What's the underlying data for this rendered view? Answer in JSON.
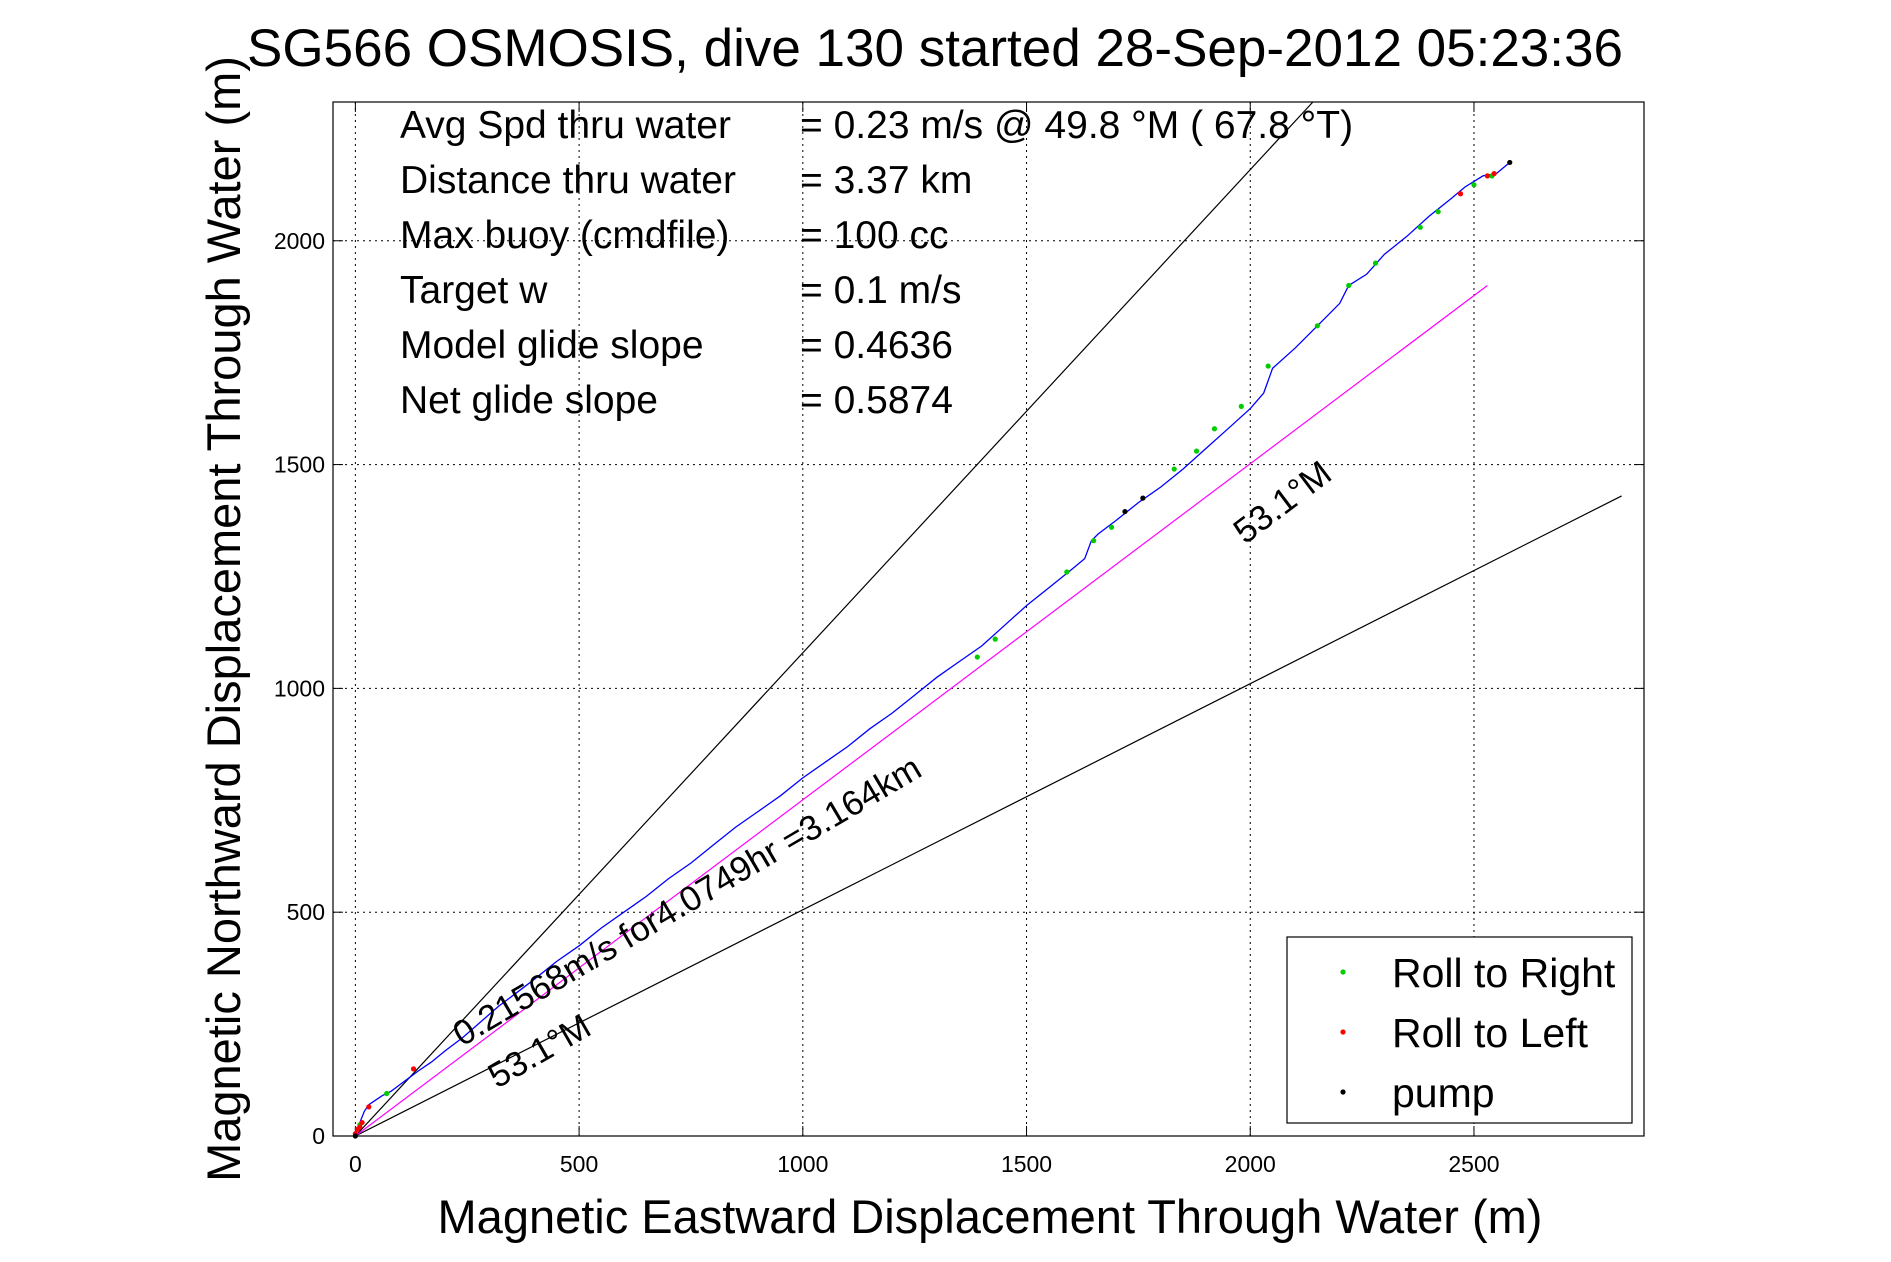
{
  "chart_data": {
    "type": "line",
    "title": "SG566 OSMOSIS, dive 130 started 28-Sep-2012 05:23:36",
    "xlabel": "Magnetic Eastward Displacement Through Water (m)",
    "ylabel": "Magnetic Northward Displacement Through Water (m)",
    "xlim": [
      -50,
      2880
    ],
    "ylim": [
      0,
      2310
    ],
    "xticks": [
      0,
      500,
      1000,
      1500,
      2000,
      2500
    ],
    "yticks": [
      0,
      500,
      1000,
      1500,
      2000
    ],
    "grid": true,
    "stats": [
      {
        "label": "Avg Spd thru water",
        "value": "=  0.23 m/s @  49.8 °M ( 67.8 °T)"
      },
      {
        "label": "Distance thru water",
        "value": "=  3.37 km"
      },
      {
        "label": "Max buoy (cmdfile)",
        "value": "= 100 cc"
      },
      {
        "label": "Target w",
        "value": "= 0.1 m/s"
      },
      {
        "label": "Model glide slope",
        "value": "= 0.4636"
      },
      {
        "label": "Net glide slope",
        "value": "= 0.5874"
      }
    ],
    "annotations": {
      "speed_line_label": "0.21568m/s for4.0749hr =3.164km",
      "heading_label_lower": "53.1°M",
      "heading_label_upper": "53.1°M"
    },
    "reference_lines": [
      {
        "name": "upper",
        "color": "#000000",
        "x": [
          0,
          2140
        ],
        "y": [
          0,
          2310
        ]
      },
      {
        "name": "lower",
        "color": "#000000",
        "x": [
          0,
          2830
        ],
        "y": [
          0,
          1430
        ]
      },
      {
        "name": "heading",
        "color": "#ff00ff",
        "x": [
          0,
          2530
        ],
        "y": [
          0,
          1900
        ]
      }
    ],
    "track": {
      "color": "#0000ff",
      "x": [
        0,
        5,
        12,
        20,
        30,
        45,
        60,
        80,
        100,
        120,
        140,
        170,
        200,
        240,
        280,
        320,
        360,
        400,
        450,
        500,
        550,
        600,
        650,
        700,
        750,
        800,
        850,
        900,
        950,
        1000,
        1050,
        1100,
        1150,
        1200,
        1250,
        1300,
        1350,
        1400,
        1450,
        1500,
        1550,
        1600,
        1630,
        1645,
        1660,
        1700,
        1750,
        1800,
        1850,
        1900,
        1950,
        2000,
        2030,
        2050,
        2100,
        2150,
        2200,
        2220,
        2260,
        2300,
        2350,
        2400,
        2450,
        2480,
        2520,
        2550,
        2580
      ],
      "y": [
        0,
        15,
        35,
        55,
        70,
        80,
        90,
        100,
        115,
        130,
        145,
        165,
        190,
        220,
        255,
        290,
        320,
        350,
        390,
        425,
        465,
        500,
        535,
        575,
        610,
        650,
        690,
        725,
        760,
        800,
        835,
        870,
        910,
        945,
        985,
        1025,
        1060,
        1095,
        1140,
        1185,
        1225,
        1265,
        1290,
        1330,
        1345,
        1375,
        1415,
        1450,
        1490,
        1535,
        1580,
        1625,
        1660,
        1715,
        1760,
        1810,
        1860,
        1900,
        1925,
        1970,
        2010,
        2055,
        2095,
        2120,
        2145,
        2150,
        2175
      ]
    },
    "markers": {
      "roll_right": {
        "color": "#00cc00",
        "x": [
          10,
          70,
          1390,
          1430,
          1590,
          1650,
          1690,
          1830,
          1880,
          1920,
          1980,
          2040,
          2150,
          2220,
          2280,
          2380,
          2420,
          2500,
          2540
        ],
        "y": [
          25,
          95,
          1070,
          1110,
          1260,
          1330,
          1360,
          1490,
          1530,
          1580,
          1630,
          1720,
          1810,
          1900,
          1950,
          2030,
          2065,
          2125,
          2145
        ]
      },
      "roll_left": {
        "color": "#ff0000",
        "x": [
          0,
          5,
          10,
          15,
          30,
          130,
          2470,
          2530,
          2545
        ],
        "y": [
          5,
          15,
          20,
          30,
          65,
          150,
          2105,
          2145,
          2150
        ]
      },
      "pump": {
        "color": "#000000",
        "x": [
          0,
          1720,
          1760,
          2580
        ],
        "y": [
          0,
          1395,
          1425,
          2175
        ]
      }
    },
    "legend": {
      "position": "bottom-right",
      "entries": [
        {
          "label": "Roll to Right",
          "color": "#00cc00"
        },
        {
          "label": "Roll to Left",
          "color": "#ff0000"
        },
        {
          "label": "pump",
          "color": "#000000"
        }
      ]
    }
  }
}
